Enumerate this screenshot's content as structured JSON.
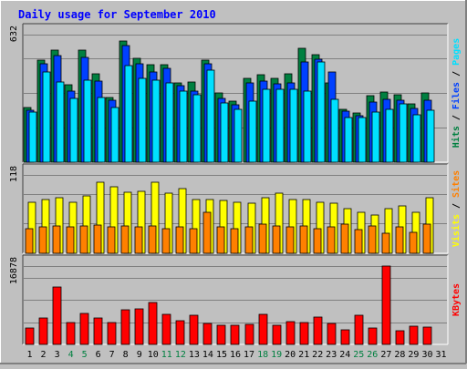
{
  "title": "Daily usage for September 2010",
  "colors": {
    "background": "#c0c0c0",
    "plot": "#c0c0c0",
    "grid": "#808080",
    "title": "#0000ff",
    "hits": "#008040",
    "files": "#0040ff",
    "pages": "#00e0ff",
    "visits": "#ffff00",
    "sites": "#ff8000",
    "kbytes": "#ff0000",
    "weekend_label": "#008040",
    "weekday_label": "#000000"
  },
  "chart_data": [
    {
      "type": "bar",
      "name": "hits-files-pages",
      "ymax_label": "632",
      "ylim": [
        0,
        632
      ],
      "right_label": [
        {
          "text": "Pages",
          "color": "#00e0ff"
        },
        {
          "text": " / ",
          "color": "#000000"
        },
        {
          "text": "Files",
          "color": "#0040ff"
        },
        {
          "text": " / ",
          "color": "#000000"
        },
        {
          "text": "Hits",
          "color": "#008040"
        }
      ],
      "categories": [
        "1",
        "2",
        "3",
        "4",
        "5",
        "6",
        "7",
        "8",
        "9",
        "10",
        "11",
        "12",
        "13",
        "14",
        "15",
        "16",
        "17",
        "18",
        "19",
        "20",
        "21",
        "22",
        "23",
        "24",
        "25",
        "26",
        "27",
        "28",
        "29",
        "30",
        "31"
      ],
      "series": [
        {
          "name": "Hits",
          "values": [
            275,
            510,
            560,
            385,
            560,
            440,
            325,
            605,
            520,
            485,
            485,
            395,
            400,
            510,
            345,
            305,
            420,
            435,
            420,
            440,
            570,
            535,
            395,
            265,
            245,
            330,
            350,
            335,
            290,
            345,
            0
          ]
        },
        {
          "name": "Files",
          "values": [
            260,
            490,
            530,
            355,
            525,
            405,
            310,
            580,
            490,
            450,
            470,
            380,
            355,
            490,
            320,
            285,
            395,
            405,
            390,
            395,
            500,
            515,
            450,
            255,
            230,
            300,
            315,
            310,
            270,
            310,
            0
          ]
        },
        {
          "name": "Pages",
          "values": [
            250,
            450,
            400,
            320,
            410,
            325,
            275,
            480,
            420,
            410,
            395,
            355,
            335,
            460,
            295,
            265,
            305,
            365,
            365,
            365,
            355,
            500,
            315,
            225,
            225,
            250,
            265,
            290,
            235,
            260,
            0
          ]
        }
      ]
    },
    {
      "type": "bar",
      "name": "visits-sites",
      "ymax_label": "118",
      "ylim": [
        0,
        118
      ],
      "right_label": [
        {
          "text": "Sites",
          "color": "#ff8000"
        },
        {
          "text": " / ",
          "color": "#000000"
        },
        {
          "text": "Visits",
          "color": "#ffff00"
        }
      ],
      "categories": [
        "1",
        "2",
        "3",
        "4",
        "5",
        "6",
        "7",
        "8",
        "9",
        "10",
        "11",
        "12",
        "13",
        "14",
        "15",
        "16",
        "17",
        "18",
        "19",
        "20",
        "21",
        "22",
        "23",
        "24",
        "25",
        "26",
        "27",
        "28",
        "29",
        "30",
        "31"
      ],
      "series": [
        {
          "name": "Visits",
          "values": [
            78,
            82,
            84,
            78,
            88,
            108,
            102,
            93,
            95,
            108,
            92,
            98,
            82,
            82,
            80,
            78,
            76,
            84,
            92,
            82,
            82,
            78,
            76,
            68,
            62,
            58,
            68,
            72,
            62,
            85,
            0
          ]
        },
        {
          "name": "Sites",
          "values": [
            38,
            40,
            42,
            40,
            42,
            43,
            40,
            42,
            40,
            42,
            38,
            40,
            38,
            62,
            40,
            38,
            40,
            44,
            42,
            40,
            42,
            38,
            40,
            44,
            36,
            42,
            30,
            40,
            32,
            44,
            0
          ]
        }
      ]
    },
    {
      "type": "bar",
      "name": "kbytes",
      "ymax_label": "16878",
      "ylim": [
        0,
        16878
      ],
      "right_label": [
        {
          "text": "KBytes",
          "color": "#ff0000"
        }
      ],
      "categories": [
        "1",
        "2",
        "3",
        "4",
        "5",
        "6",
        "7",
        "8",
        "9",
        "10",
        "11",
        "12",
        "13",
        "14",
        "15",
        "16",
        "17",
        "18",
        "19",
        "20",
        "21",
        "22",
        "23",
        "24",
        "25",
        "26",
        "27",
        "28",
        "29",
        "30",
        "31"
      ],
      "series": [
        {
          "name": "KBytes",
          "values": [
            3500,
            5800,
            12500,
            4800,
            6700,
            5800,
            4700,
            7500,
            7800,
            9200,
            6500,
            5200,
            6400,
            4600,
            4200,
            4200,
            4300,
            6600,
            4200,
            4900,
            4800,
            5900,
            4600,
            3100,
            6300,
            3500,
            17000,
            2900,
            3900,
            3800,
            0
          ]
        }
      ]
    }
  ]
}
